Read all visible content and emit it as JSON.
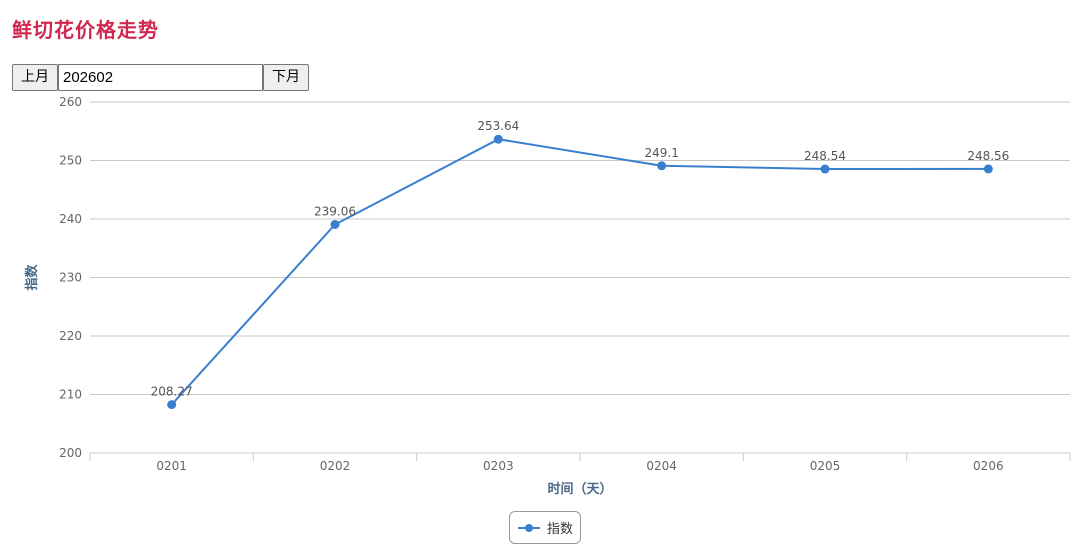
{
  "page": {
    "title": "鲜切花价格走势"
  },
  "controls": {
    "prev_label": "上月",
    "month_value": "202602",
    "next_label": "下月"
  },
  "legend": {
    "label": "指数"
  },
  "colors": {
    "title": "#d0284f",
    "series": "#3a7fcf",
    "grid": "#c8c8c8",
    "axis_title": "#4a6a8a"
  },
  "chart_data": {
    "type": "line",
    "categories": [
      "0201",
      "0202",
      "0203",
      "0204",
      "0205",
      "0206"
    ],
    "series": [
      {
        "name": "指数",
        "values": [
          208.27,
          239.06,
          253.64,
          249.1,
          248.54,
          248.56
        ]
      }
    ],
    "data_labels": [
      "208.27",
      "239.06",
      "253.64",
      "249.1",
      "248.54",
      "248.56"
    ],
    "xlabel": "时间（天）",
    "ylabel": "指数",
    "ylim": [
      200,
      260
    ],
    "yticks": [
      200,
      210,
      220,
      230,
      240,
      250,
      260
    ],
    "grid": true,
    "legend_position": "bottom-center"
  }
}
